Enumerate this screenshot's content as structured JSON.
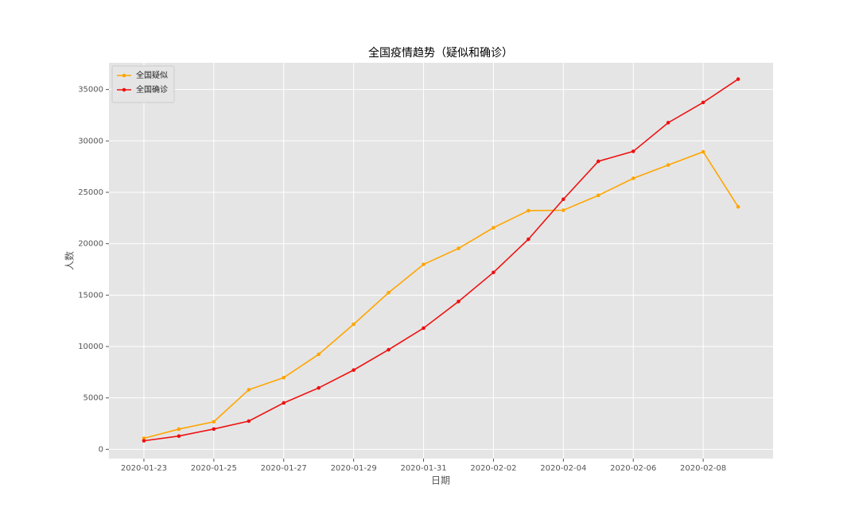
{
  "chart_data": {
    "type": "line",
    "title": "全国疫情趋势（疑似和确诊）",
    "x_label": "日期",
    "y_label": "人数",
    "x": [
      "2020-01-23",
      "2020-01-24",
      "2020-01-25",
      "2020-01-26",
      "2020-01-27",
      "2020-01-28",
      "2020-01-29",
      "2020-01-30",
      "2020-01-31",
      "2020-02-01",
      "2020-02-02",
      "2020-02-03",
      "2020-02-04",
      "2020-02-05",
      "2020-02-06",
      "2020-02-07",
      "2020-02-08",
      "2020-02-09"
    ],
    "series": [
      {
        "name": "全国疑似",
        "color": "#ffa500",
        "values": [
          1072,
          1965,
          2684,
          5794,
          6973,
          9239,
          12167,
          15238,
          17988,
          19544,
          21558,
          23214,
          23260,
          24702,
          26359,
          27657,
          28942,
          23589
        ]
      },
      {
        "name": "全国确诊",
        "color": "#ee1111",
        "values": [
          830,
          1287,
          1975,
          2744,
          4515,
          5974,
          7711,
          9692,
          11791,
          14380,
          17205,
          20438,
          24324,
          28018,
          28985,
          31774,
          33740,
          36010
        ]
      }
    ],
    "xlim": [
      "2020-01-22",
      "2020-02-10"
    ],
    "xticks": [
      "2020-01-23",
      "2020-01-25",
      "2020-01-27",
      "2020-01-29",
      "2020-01-31",
      "2020-02-02",
      "2020-02-04",
      "2020-02-06",
      "2020-02-08"
    ],
    "ylim": [
      -900,
      37600
    ],
    "yticks": [
      0,
      5000,
      10000,
      15000,
      20000,
      25000,
      30000,
      35000
    ],
    "grid": true,
    "legend": "upper left"
  }
}
